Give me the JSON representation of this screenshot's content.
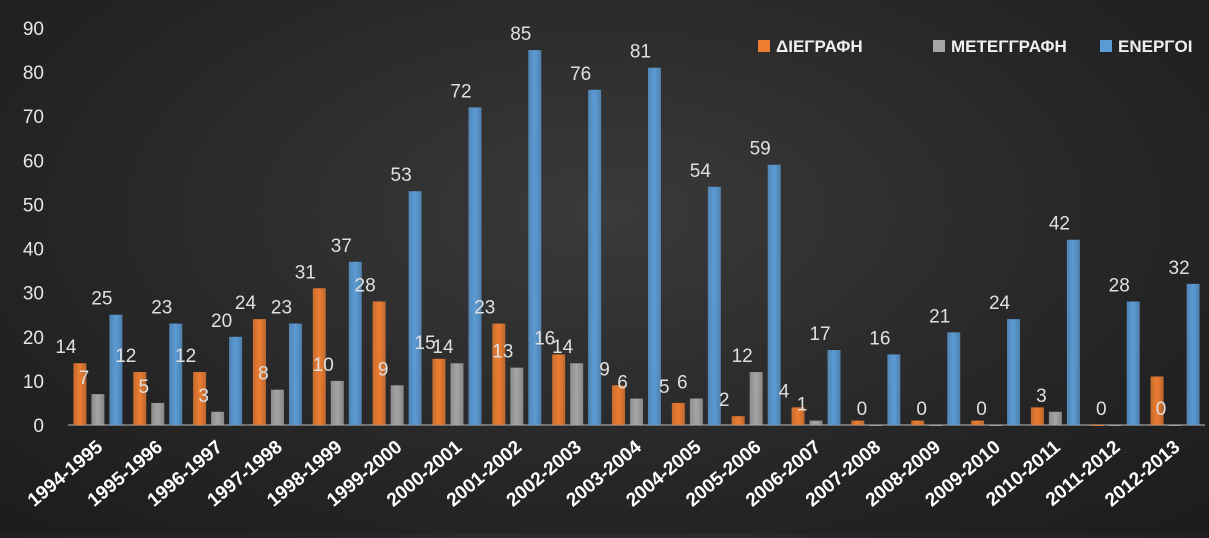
{
  "chart_data": {
    "type": "bar",
    "title": "",
    "xlabel": "",
    "ylabel": "",
    "ylim": [
      0,
      90
    ],
    "yticks": [
      0,
      10,
      20,
      30,
      40,
      50,
      60,
      70,
      80,
      90
    ],
    "grid": false,
    "legend_position": "top-right",
    "categories": [
      "1994-1995",
      "1995-1996",
      "1996-1997",
      "1997-1998",
      "1998-1999",
      "1999-2000",
      "2000-2001",
      "2001-2002",
      "2002-2003",
      "2003-2004",
      "2004-2005",
      "2005-2006",
      "2006-2007",
      "2007-2008",
      "2008-2009",
      "2009-2010",
      "2010-2011",
      "2011-2012",
      "2012-2013"
    ],
    "series": [
      {
        "name": "ΔΙΕΓΡΑΦΗ",
        "color": "#ed7d31",
        "values": [
          14,
          12,
          12,
          24,
          31,
          28,
          15,
          23,
          16,
          9,
          5,
          2,
          4,
          1,
          1,
          1,
          4,
          0,
          11
        ],
        "labels": [
          "14",
          "12",
          "12",
          "24",
          "31",
          "28",
          "15",
          "23",
          "16",
          "9",
          "5",
          "2",
          "4",
          "",
          "",
          "",
          "",
          "",
          ""
        ]
      },
      {
        "name": "ΜΕΤΕΓΓΡΑΦΗ",
        "color": "#a5a5a5",
        "values": [
          7,
          5,
          3,
          8,
          10,
          9,
          14,
          13,
          14,
          6,
          6,
          12,
          1,
          0,
          0,
          0,
          3,
          0,
          0
        ],
        "labels": [
          "7",
          "5",
          "3",
          "8",
          "10",
          "9",
          "14",
          "13",
          "14",
          "6",
          "6",
          "12",
          "1",
          "0",
          "0",
          "0",
          "3",
          "0",
          "0"
        ]
      },
      {
        "name": "ΕΝΕΡΓΟΙ",
        "color": "#5b9bd5",
        "values": [
          25,
          23,
          20,
          23,
          37,
          53,
          72,
          85,
          76,
          81,
          54,
          59,
          17,
          16,
          21,
          24,
          42,
          28,
          32
        ],
        "labels": [
          "25",
          "23",
          "20",
          "23",
          "37",
          "53",
          "72",
          "85",
          "76",
          "81",
          "54",
          "59",
          "17",
          "16",
          "21",
          "24",
          "42",
          "28",
          "32"
        ]
      }
    ]
  }
}
